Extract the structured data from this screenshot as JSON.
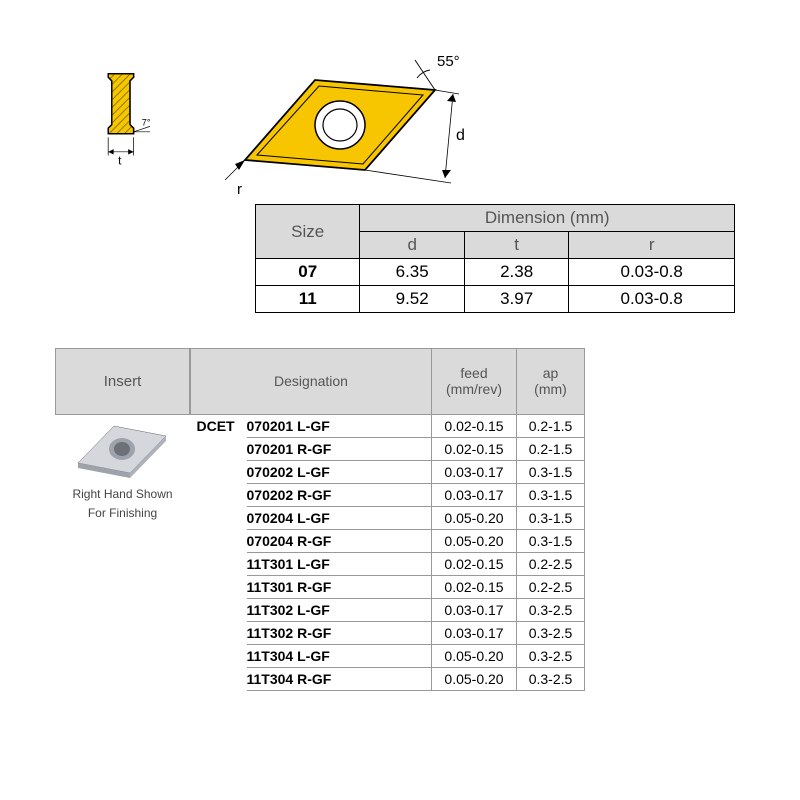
{
  "diagram": {
    "angle_relief": "7°",
    "dim_t": "t",
    "dim_r": "r",
    "angle_nose": "55°",
    "dim_d": "d",
    "insert_color": "#f7c600",
    "outline_color": "#000000",
    "hatch_color": "#5a5a00"
  },
  "size_table": {
    "header_bg": "#dadada",
    "size_label": "Size",
    "dimension_label": "Dimension (mm)",
    "cols": [
      "d",
      "t",
      "r"
    ],
    "rows": [
      {
        "size": "07",
        "d": "6.35",
        "t": "2.38",
        "r": "0.03-0.8"
      },
      {
        "size": "11",
        "d": "9.52",
        "t": "3.97",
        "r": "0.03-0.8"
      }
    ]
  },
  "insert_panel": {
    "header": "Insert",
    "caption1": "Right Hand Shown",
    "caption2": "For Finishing"
  },
  "des_table": {
    "header_bg": "#dadada",
    "h_designation": "Designation",
    "h_feed_line1": "feed",
    "h_feed_line2": "(mm/rev)",
    "h_ap_line1": "ap",
    "h_ap_line2": "(mm)",
    "prefix": "DCET",
    "rows": [
      {
        "des": "070201 L-GF",
        "feed": "0.02-0.15",
        "ap": "0.2-1.5"
      },
      {
        "des": "070201 R-GF",
        "feed": "0.02-0.15",
        "ap": "0.2-1.5"
      },
      {
        "des": "070202 L-GF",
        "feed": "0.03-0.17",
        "ap": "0.3-1.5"
      },
      {
        "des": "070202 R-GF",
        "feed": "0.03-0.17",
        "ap": "0.3-1.5"
      },
      {
        "des": "070204 L-GF",
        "feed": "0.05-0.20",
        "ap": "0.3-1.5"
      },
      {
        "des": "070204 R-GF",
        "feed": "0.05-0.20",
        "ap": "0.3-1.5"
      },
      {
        "des": "11T301 L-GF",
        "feed": "0.02-0.15",
        "ap": "0.2-2.5"
      },
      {
        "des": "11T301 R-GF",
        "feed": "0.02-0.15",
        "ap": "0.2-2.5"
      },
      {
        "des": "11T302 L-GF",
        "feed": "0.03-0.17",
        "ap": "0.3-2.5"
      },
      {
        "des": "11T302 R-GF",
        "feed": "0.03-0.17",
        "ap": "0.3-2.5"
      },
      {
        "des": "11T304 L-GF",
        "feed": "0.05-0.20",
        "ap": "0.3-2.5"
      },
      {
        "des": "11T304 R-GF",
        "feed": "0.05-0.20",
        "ap": "0.3-2.5"
      }
    ]
  },
  "thumbnail": {
    "body_color": "#d5d7dc",
    "shade_color": "#9ea2aa",
    "hole_color": "#6c7078"
  }
}
